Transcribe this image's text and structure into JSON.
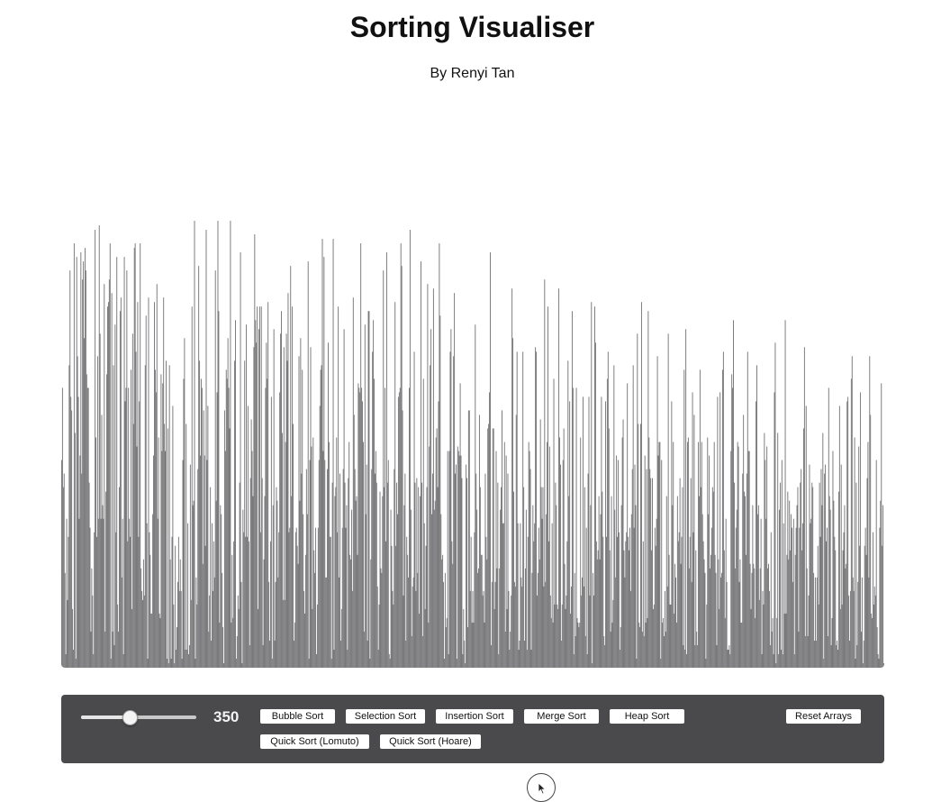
{
  "page": {
    "title": "Sorting Visualiser",
    "subtitle": "By Renyi Tan"
  },
  "chart_data": {
    "type": "bar",
    "bar_color": "#78787a",
    "ylim": [
      0,
      100
    ],
    "values": [
      46,
      62,
      40,
      43,
      21,
      3,
      33,
      15,
      29,
      67,
      88,
      60,
      57,
      13,
      4,
      94,
      52,
      2,
      91,
      69,
      60,
      33,
      47,
      92,
      43,
      86,
      90,
      73,
      93,
      88,
      65,
      62,
      62,
      41,
      31,
      8,
      22,
      16,
      3,
      30,
      97,
      51,
      29,
      69,
      33,
      98,
      74,
      33,
      56,
      36,
      33,
      85,
      8,
      39,
      65,
      80,
      81,
      86,
      94,
      2,
      83,
      8,
      67,
      5,
      76,
      30,
      91,
      14,
      8,
      40,
      79,
      82,
      20,
      33,
      3,
      91,
      59,
      62,
      88,
      28,
      62,
      33,
      29,
      66,
      13,
      74,
      54,
      93,
      94,
      70,
      49,
      81,
      29,
      59,
      94,
      22,
      17,
      15,
      24,
      16,
      67,
      78,
      32,
      2,
      82,
      30,
      25,
      12,
      12,
      34,
      47,
      81,
      66,
      61,
      85,
      33,
      51,
      12,
      11,
      65,
      48,
      63,
      82,
      54,
      48,
      68,
      2,
      53,
      1,
      67,
      24,
      2,
      29,
      58,
      14,
      1,
      27,
      4,
      9,
      19,
      29,
      17,
      24,
      17,
      2,
      46,
      64,
      73,
      4,
      54,
      4,
      32,
      3,
      5,
      45,
      15,
      80,
      36,
      37,
      99,
      2,
      20,
      14,
      44,
      89,
      68,
      47,
      64,
      62,
      23,
      57,
      47,
      27,
      97,
      46,
      58,
      8,
      16,
      40,
      6,
      32,
      17,
      28,
      20,
      88,
      37,
      61,
      99,
      79,
      10,
      36,
      34,
      21,
      9,
      1,
      57,
      48,
      66,
      64,
      73,
      62,
      53,
      99,
      10,
      25,
      11,
      28,
      68,
      77,
      2,
      7,
      16,
      13,
      41,
      92,
      19,
      1,
      35,
      30,
      68,
      29,
      76,
      29,
      58,
      28,
      5,
      42,
      55,
      48,
      38,
      71,
      96,
      77,
      72,
      80,
      13,
      75,
      80,
      30,
      80,
      42,
      5,
      24,
      38,
      62,
      72,
      64,
      81,
      19,
      6,
      28,
      60,
      2,
      36,
      75,
      6,
      19,
      40,
      37,
      20,
      30,
      61,
      74,
      79,
      52,
      15,
      71,
      15,
      50,
      74,
      68,
      83,
      30,
      31,
      89,
      38,
      80,
      54,
      6,
      10,
      30,
      31,
      27,
      23,
      69,
      37,
      73,
      43,
      66,
      34,
      17,
      12,
      25,
      44,
      34,
      90,
      2,
      46,
      71,
      49,
      13,
      51,
      26,
      21,
      31,
      3,
      14,
      31,
      46,
      58,
      66,
      67,
      95,
      48,
      91,
      46,
      20,
      20,
      44,
      72,
      50,
      29,
      29,
      2,
      41,
      95,
      4,
      38,
      40,
      51,
      30,
      80,
      20,
      43,
      6,
      13,
      31,
      44,
      75,
      41,
      31,
      36,
      4,
      42,
      50,
      25,
      24,
      35,
      17,
      82,
      56,
      44,
      37,
      38,
      25,
      63,
      62,
      61,
      94,
      62,
      59,
      50,
      8,
      76,
      34,
      45,
      6,
      79,
      79,
      2,
      24,
      44,
      70,
      77,
      64,
      43,
      48,
      41,
      18,
      4,
      14,
      39,
      22,
      21,
      38,
      88,
      40,
      62,
      28,
      92,
      41,
      46,
      3,
      2,
      35,
      27,
      17,
      14,
      44,
      81,
      27,
      41,
      34,
      60,
      61,
      62,
      94,
      89,
      57,
      16,
      36,
      43,
      6,
      29,
      25,
      20,
      62,
      97,
      35,
      7,
      18,
      20,
      70,
      41,
      17,
      42,
      21,
      40,
      12,
      38,
      90,
      41,
      7,
      64,
      32,
      13,
      27,
      40,
      85,
      10,
      49,
      67,
      75,
      34,
      43,
      84,
      35,
      37,
      51,
      53,
      40,
      59,
      94,
      78,
      34,
      24,
      25,
      19,
      2,
      21,
      9,
      11,
      48,
      3,
      48,
      70,
      75,
      28,
      23,
      69,
      83,
      43,
      45,
      2,
      49,
      48,
      47,
      63,
      47,
      42,
      3,
      13,
      6,
      1,
      45,
      42,
      9,
      57,
      57,
      17,
      29,
      10,
      17,
      10,
      30,
      76,
      43,
      35,
      21,
      22,
      56,
      40,
      25,
      25,
      16,
      17,
      10,
      43,
      29,
      24,
      53,
      54,
      61,
      92,
      5,
      19,
      53,
      53,
      13,
      19,
      48,
      22,
      41,
      3,
      22,
      35,
      40,
      57,
      32,
      32,
      50,
      8,
      47,
      13,
      43,
      17,
      4,
      8,
      16,
      84,
      73,
      39,
      19,
      18,
      56,
      70,
      32,
      4,
      6,
      32,
      20,
      18,
      70,
      40,
      6,
      22,
      35,
      4,
      29,
      50,
      48,
      44,
      4,
      21,
      36,
      28,
      32,
      71,
      70,
      16,
      21,
      31,
      24,
      55,
      40,
      33,
      40,
      18,
      86,
      19,
      34,
      50,
      80,
      28,
      49,
      16,
      11,
      32,
      10,
      64,
      14,
      41,
      36,
      14,
      13,
      84,
      51,
      45,
      6,
      14,
      46,
      53,
      23,
      13,
      16,
      28,
      68,
      38,
      59,
      12,
      18,
      79,
      62,
      3,
      21,
      7,
      62,
      11,
      10,
      9,
      10,
      51,
      16,
      20,
      60,
      18,
      40,
      7,
      31,
      3,
      43,
      60,
      16,
      36,
      81,
      1,
      21,
      16,
      80,
      72,
      28,
      24,
      26,
      38,
      24,
      34,
      60,
      39,
      29,
      7,
      5,
      59,
      29,
      64,
      70,
      53,
      26,
      8,
      38,
      10,
      15,
      67,
      35,
      20,
      47,
      29,
      46,
      30,
      4,
      9,
      36,
      51,
      55,
      26,
      20,
      28,
      30,
      63,
      29,
      26,
      31,
      17,
      34,
      44,
      67,
      31,
      45,
      36,
      2,
      74,
      54,
      10,
      9,
      54,
      81,
      8,
      28,
      7,
      47,
      10,
      44,
      11,
      79,
      51,
      44,
      42,
      26,
      42,
      13,
      14,
      31,
      27,
      33,
      69,
      47,
      50,
      50,
      2,
      46,
      10,
      11,
      7,
      17,
      8,
      38,
      18,
      74,
      25,
      14,
      14,
      59,
      36,
      50,
      12,
      23,
      20,
      10,
      38,
      28,
      30,
      42,
      23,
      29,
      40,
      5,
      66,
      4,
      75,
      3,
      50,
      51,
      22,
      29,
      42,
      19,
      61,
      30,
      56,
      5,
      26,
      8,
      5,
      50,
      38,
      66,
      40,
      50,
      34,
      28,
      24,
      21,
      2,
      14,
      51,
      34,
      47,
      22,
      25,
      31,
      40,
      39,
      50,
      25,
      21,
      5,
      60,
      24,
      13,
      61,
      20,
      21,
      66,
      70,
      26,
      11,
      33,
      19,
      4,
      4,
      5,
      3,
      48,
      65,
      62,
      77,
      41,
      22,
      31,
      35,
      50,
      49,
      19,
      24,
      10,
      10,
      43,
      56,
      39,
      38,
      25,
      43,
      70,
      48,
      48,
      23,
      13,
      21,
      36,
      23,
      22,
      11,
      59,
      67,
      34,
      36,
      15,
      22,
      33,
      3,
      17,
      14,
      52,
      46,
      33,
      49,
      22,
      23,
      17,
      5,
      30,
      8,
      11,
      3,
      61,
      72,
      1,
      11,
      52,
      3,
      35,
      41,
      4,
      46,
      3,
      32,
      12,
      77,
      12,
      25,
      39,
      24,
      37,
      26,
      34,
      31,
      19,
      33,
      3,
      25,
      31,
      36,
      40,
      8,
      31,
      41,
      44,
      26,
      32,
      53,
      71,
      7,
      58,
      22,
      7,
      16,
      45,
      32,
      33,
      41,
      40,
      21,
      6,
      20,
      6,
      20,
      27,
      14,
      41,
      29,
      44,
      36,
      52,
      2,
      43,
      45,
      28,
      31,
      7,
      62,
      38,
      35,
      5,
      11,
      48,
      37,
      29,
      26,
      5,
      6,
      4,
      39,
      58,
      13,
      45,
      14,
      26,
      30,
      36,
      22,
      23,
      59,
      60,
      16,
      6,
      17,
      64,
      69,
      20,
      17,
      51,
      2,
      41,
      5,
      19,
      49,
      27,
      61,
      8,
      20,
      1,
      6,
      27,
      31,
      25,
      42,
      50,
      20,
      69,
      56,
      12,
      11,
      30,
      14,
      18,
      16,
      46,
      9,
      3,
      2,
      31,
      37,
      63,
      27,
      36,
      1
    ]
  },
  "controls": {
    "slider": {
      "value": 350,
      "label": "350",
      "min": 0,
      "max": 1000
    },
    "buttons": {
      "bubble": "Bubble Sort",
      "selection": "Selection Sort",
      "insertion": "Insertion Sort",
      "merge": "Merge Sort",
      "heap": "Heap Sort",
      "quick_lomuto": "Quick Sort (Lomuto)",
      "quick_hoare": "Quick Sort (Hoare)",
      "reset": "Reset Arrays"
    }
  },
  "colors": {
    "panel": "#4a4a4c",
    "bars": "#78787a",
    "background": "#ffffff"
  },
  "icons": {
    "cursor": "cursor-arrow-icon"
  }
}
